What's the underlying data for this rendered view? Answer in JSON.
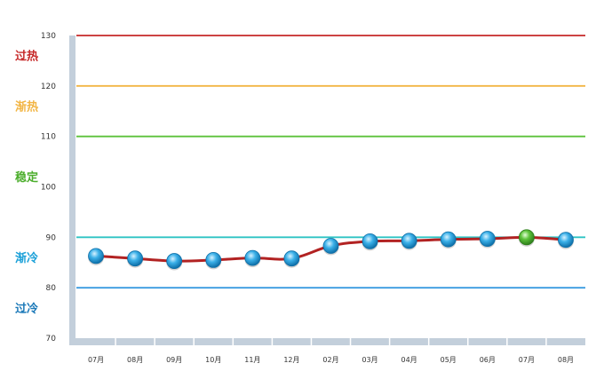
{
  "chart_data": {
    "type": "line",
    "categories": [
      "07月",
      "08月",
      "09月",
      "10月",
      "11月",
      "12月",
      "02月",
      "03月",
      "04月",
      "05月",
      "06月",
      "07月",
      "08月"
    ],
    "series": [
      {
        "values": [
          86.3,
          85.8,
          85.3,
          85.5,
          85.9,
          85.8,
          88.3,
          89.2,
          89.3,
          89.6,
          89.7,
          90.0,
          89.5
        ],
        "color": "#b22222",
        "marker_color": "#1a9ad6",
        "highlight_index": 11,
        "highlight_color": "#3aa52a"
      }
    ],
    "ylim": [
      70,
      130
    ],
    "yticks": [
      70,
      80,
      90,
      100,
      110,
      120,
      130
    ],
    "reference_lines": [
      {
        "value": 130,
        "color": "#c62828"
      },
      {
        "value": 120,
        "color": "#f2b544"
      },
      {
        "value": 110,
        "color": "#5cc23a"
      },
      {
        "value": 90,
        "color": "#2ec4c4"
      },
      {
        "value": 80,
        "color": "#3a9be0"
      }
    ],
    "zone_labels": [
      {
        "text": "过热",
        "value": 126,
        "color": "#c62828"
      },
      {
        "text": "渐热",
        "value": 116,
        "color": "#f2b544"
      },
      {
        "text": "稳定",
        "value": 102,
        "color": "#4cae2c"
      },
      {
        "text": "渐冷",
        "value": 86,
        "color": "#1aa0d8"
      },
      {
        "text": "过冷",
        "value": 76,
        "color": "#1a78b8"
      }
    ],
    "grid": false
  }
}
